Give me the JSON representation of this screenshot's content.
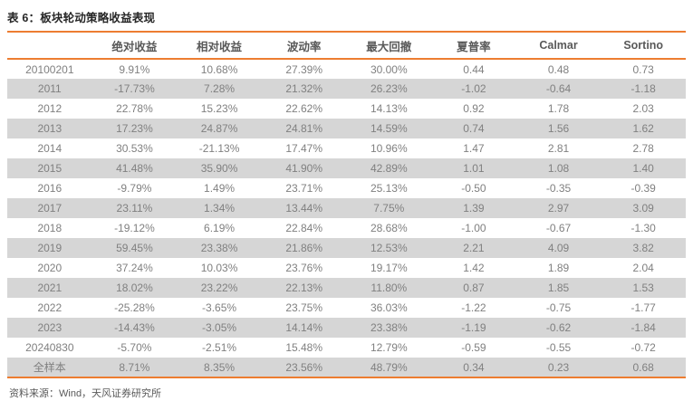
{
  "title": "表 6：板块轮动策略收益表现",
  "footer": {
    "source": "资料来源：Wind，天风证券研究所"
  },
  "colors": {
    "accent_orange": "#ED7D31",
    "stripe_gray": "#D6D6D6",
    "body_text": "#808080",
    "header_text": "#595959",
    "title_text": "#262626"
  },
  "chart_data": {
    "type": "table",
    "title": "板块轮动策略收益表现",
    "columns": [
      "",
      "绝对收益",
      "相对收益",
      "波动率",
      "最大回撤",
      "夏普率",
      "Calmar",
      "Sortino"
    ],
    "rows": [
      [
        "20100201",
        "9.91%",
        "10.68%",
        "27.39%",
        "30.00%",
        "0.44",
        "0.48",
        "0.73"
      ],
      [
        "2011",
        "-17.73%",
        "7.28%",
        "21.32%",
        "26.23%",
        "-1.02",
        "-0.64",
        "-1.18"
      ],
      [
        "2012",
        "22.78%",
        "15.23%",
        "22.62%",
        "14.13%",
        "0.92",
        "1.78",
        "2.03"
      ],
      [
        "2013",
        "17.23%",
        "24.87%",
        "24.81%",
        "14.59%",
        "0.74",
        "1.56",
        "1.62"
      ],
      [
        "2014",
        "30.53%",
        "-21.13%",
        "17.47%",
        "10.96%",
        "1.47",
        "2.81",
        "2.78"
      ],
      [
        "2015",
        "41.48%",
        "35.90%",
        "41.90%",
        "42.89%",
        "1.01",
        "1.08",
        "1.40"
      ],
      [
        "2016",
        "-9.79%",
        "1.49%",
        "23.71%",
        "25.13%",
        "-0.50",
        "-0.35",
        "-0.39"
      ],
      [
        "2017",
        "23.11%",
        "1.34%",
        "13.44%",
        "7.75%",
        "1.39",
        "2.97",
        "3.09"
      ],
      [
        "2018",
        "-19.12%",
        "6.19%",
        "22.84%",
        "28.68%",
        "-1.00",
        "-0.67",
        "-1.30"
      ],
      [
        "2019",
        "59.45%",
        "23.38%",
        "21.86%",
        "12.53%",
        "2.21",
        "4.09",
        "3.82"
      ],
      [
        "2020",
        "37.24%",
        "10.03%",
        "23.76%",
        "19.17%",
        "1.42",
        "1.89",
        "2.04"
      ],
      [
        "2021",
        "18.02%",
        "23.22%",
        "22.13%",
        "11.80%",
        "0.87",
        "1.85",
        "1.53"
      ],
      [
        "2022",
        "-25.28%",
        "-3.65%",
        "23.75%",
        "36.03%",
        "-1.22",
        "-0.75",
        "-1.77"
      ],
      [
        "2023",
        "-14.43%",
        "-3.05%",
        "14.14%",
        "23.38%",
        "-1.19",
        "-0.62",
        "-1.84"
      ],
      [
        "20240830",
        "-5.70%",
        "-2.51%",
        "15.48%",
        "12.79%",
        "-0.59",
        "-0.55",
        "-0.72"
      ],
      [
        "全样本",
        "8.71%",
        "8.35%",
        "23.56%",
        "48.79%",
        "0.34",
        "0.23",
        "0.68"
      ]
    ]
  }
}
